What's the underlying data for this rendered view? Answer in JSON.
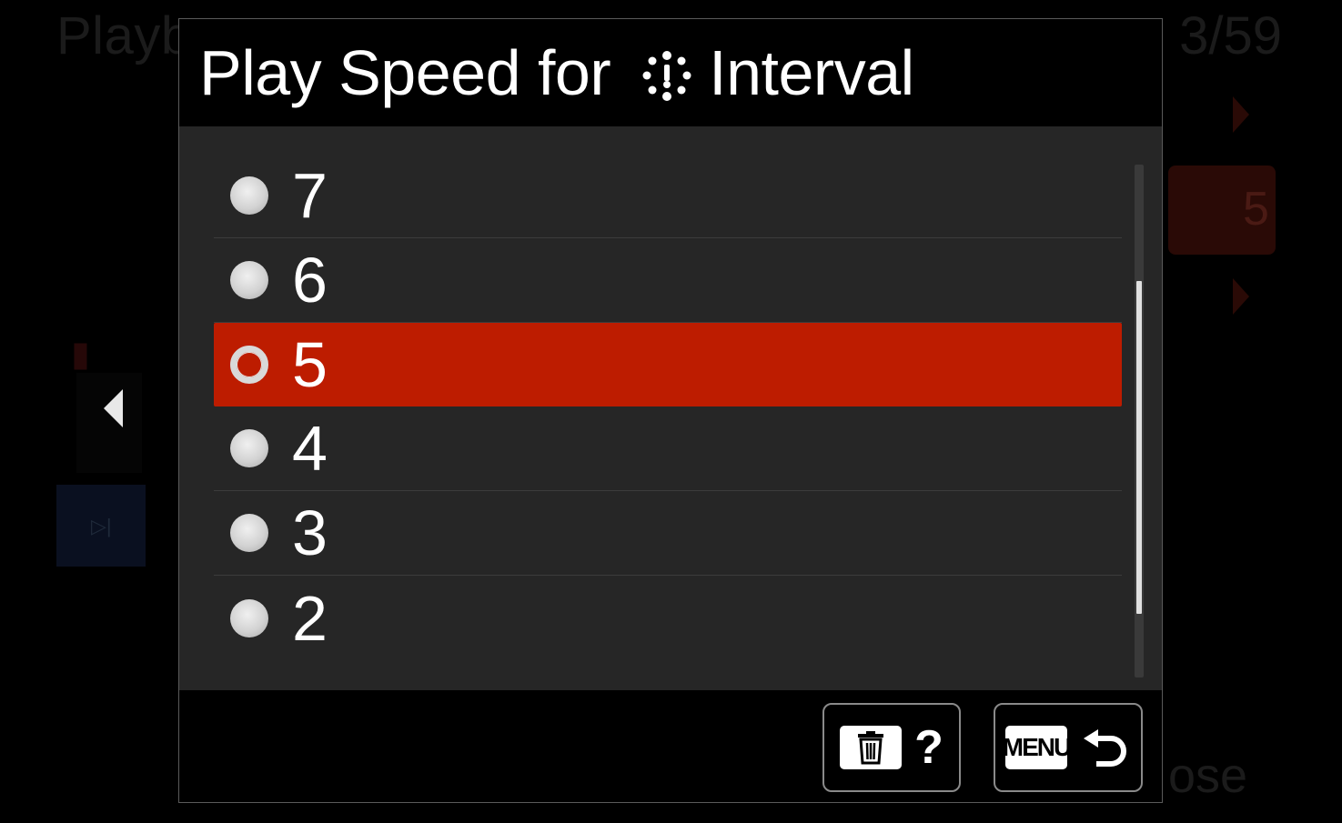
{
  "background": {
    "title": "Playba",
    "page": "3/59",
    "highlighted_value": "5",
    "footer_text": "ose"
  },
  "dialog": {
    "title_prefix": "Play Speed for",
    "title_icon": "interval-shooting-icon",
    "title_suffix": "Interval",
    "options": [
      {
        "label": "7",
        "selected": false
      },
      {
        "label": "6",
        "selected": false
      },
      {
        "label": "5",
        "selected": true
      },
      {
        "label": "4",
        "selected": false
      },
      {
        "label": "3",
        "selected": false
      },
      {
        "label": "2",
        "selected": false
      }
    ],
    "scroll_position": 0.23,
    "help_button": {
      "icon": "trash-icon",
      "label": "?"
    },
    "back_button": {
      "menu_label": "MENU",
      "icon": "return-arrow-icon"
    }
  },
  "colors": {
    "selected": "#bd1c00",
    "panel": "#262626",
    "text": "#ffffff"
  }
}
